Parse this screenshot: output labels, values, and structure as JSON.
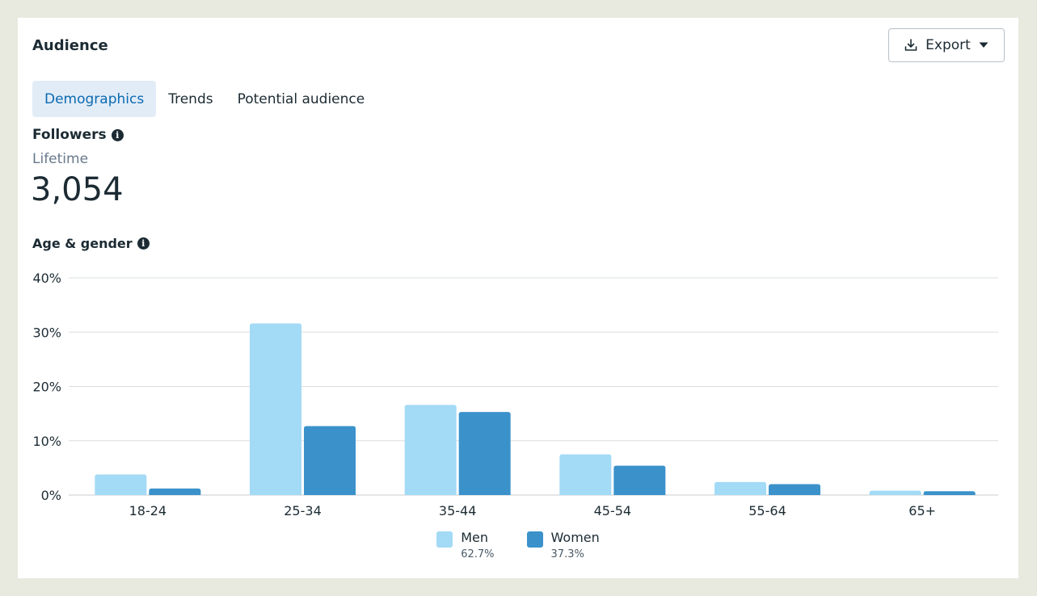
{
  "card": {
    "title": "Audience",
    "export_label": "Export",
    "tabs": [
      {
        "label": "Demographics",
        "active": true
      },
      {
        "label": "Trends",
        "active": false
      },
      {
        "label": "Potential audience",
        "active": false
      }
    ],
    "metric": {
      "label": "Followers",
      "period": "Lifetime",
      "value": "3,054"
    },
    "chart_section_label": "Age & gender"
  },
  "colors": {
    "men": "#a3daf6",
    "women": "#3b92cb",
    "grid": "#dadde1",
    "active_tab_bg": "#e2ecf7",
    "active_tab_text": "#0b6ab2"
  },
  "chart_data": {
    "type": "bar",
    "categories": [
      "18-24",
      "25-34",
      "35-44",
      "45-54",
      "55-64",
      "65+"
    ],
    "series": [
      {
        "name": "Men",
        "total": "62.7%",
        "values": [
          3.8,
          31.6,
          16.6,
          7.5,
          2.4,
          0.8
        ]
      },
      {
        "name": "Women",
        "total": "37.3%",
        "values": [
          1.2,
          12.7,
          15.3,
          5.4,
          2.0,
          0.7
        ]
      }
    ],
    "yticks": [
      "0%",
      "10%",
      "20%",
      "30%",
      "40%"
    ],
    "ylim": [
      0,
      40
    ],
    "grid": true,
    "legend_position": "bottom"
  }
}
